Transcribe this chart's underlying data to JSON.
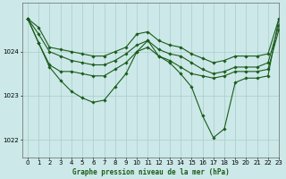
{
  "title": "Graphe pression niveau de la mer (hPa)",
  "background_color": "#cce8e8",
  "line_color": "#1a5c1a",
  "grid_color": "#aacccc",
  "xlim": [
    -0.5,
    23
  ],
  "ylim": [
    1021.6,
    1025.1
  ],
  "yticks": [
    1022,
    1023,
    1024
  ],
  "xticks": [
    0,
    1,
    2,
    3,
    4,
    5,
    6,
    7,
    8,
    9,
    10,
    11,
    12,
    13,
    14,
    15,
    16,
    17,
    18,
    19,
    20,
    21,
    22,
    23
  ],
  "series": [
    {
      "x": [
        0,
        1,
        2,
        3,
        4,
        5,
        6,
        7,
        8,
        9,
        10,
        11,
        12,
        13,
        14,
        15,
        16,
        17,
        18,
        19,
        20,
        21,
        22,
        23
      ],
      "y": [
        1024.75,
        1024.55,
        1024.1,
        1024.05,
        1024.0,
        1023.95,
        1023.9,
        1023.9,
        1024.0,
        1024.1,
        1024.4,
        1024.45,
        1024.25,
        1024.15,
        1024.1,
        1023.95,
        1023.85,
        1023.75,
        1023.8,
        1023.9,
        1023.9,
        1023.9,
        1023.95,
        1024.75
      ]
    },
    {
      "x": [
        0,
        1,
        2,
        3,
        4,
        5,
        6,
        7,
        8,
        9,
        10,
        11,
        12,
        13,
        14,
        15,
        16,
        17,
        18,
        19,
        20,
        21,
        22,
        23
      ],
      "y": [
        1024.75,
        1024.4,
        1024.0,
        1023.9,
        1023.8,
        1023.75,
        1023.7,
        1023.7,
        1023.8,
        1023.95,
        1024.15,
        1024.25,
        1024.05,
        1023.95,
        1023.9,
        1023.75,
        1023.6,
        1023.5,
        1023.55,
        1023.65,
        1023.65,
        1023.65,
        1023.75,
        1024.6
      ]
    },
    {
      "x": [
        0,
        1,
        2,
        3,
        4,
        5,
        6,
        7,
        8,
        9,
        10,
        11,
        12,
        13,
        14,
        15,
        16,
        17,
        18,
        19,
        20,
        21,
        22,
        23
      ],
      "y": [
        1024.75,
        1024.2,
        1023.7,
        1023.55,
        1023.55,
        1023.5,
        1023.45,
        1023.45,
        1023.6,
        1023.75,
        1024.0,
        1024.1,
        1023.9,
        1023.8,
        1023.65,
        1023.5,
        1023.45,
        1023.4,
        1023.45,
        1023.55,
        1023.55,
        1023.55,
        1023.6,
        1024.5
      ]
    },
    {
      "x": [
        0,
        1,
        2,
        3,
        4,
        5,
        6,
        7,
        8,
        9,
        10,
        11,
        12,
        13,
        14,
        15,
        16,
        17,
        18,
        19,
        20,
        21,
        22,
        23
      ],
      "y": [
        1024.75,
        1024.2,
        1023.65,
        1023.35,
        1023.1,
        1022.95,
        1022.85,
        1022.9,
        1023.2,
        1023.5,
        1024.0,
        1024.25,
        1023.9,
        1023.75,
        1023.5,
        1023.2,
        1022.55,
        1022.05,
        1022.25,
        1023.3,
        1023.4,
        1023.4,
        1023.45,
        1024.75
      ]
    }
  ]
}
